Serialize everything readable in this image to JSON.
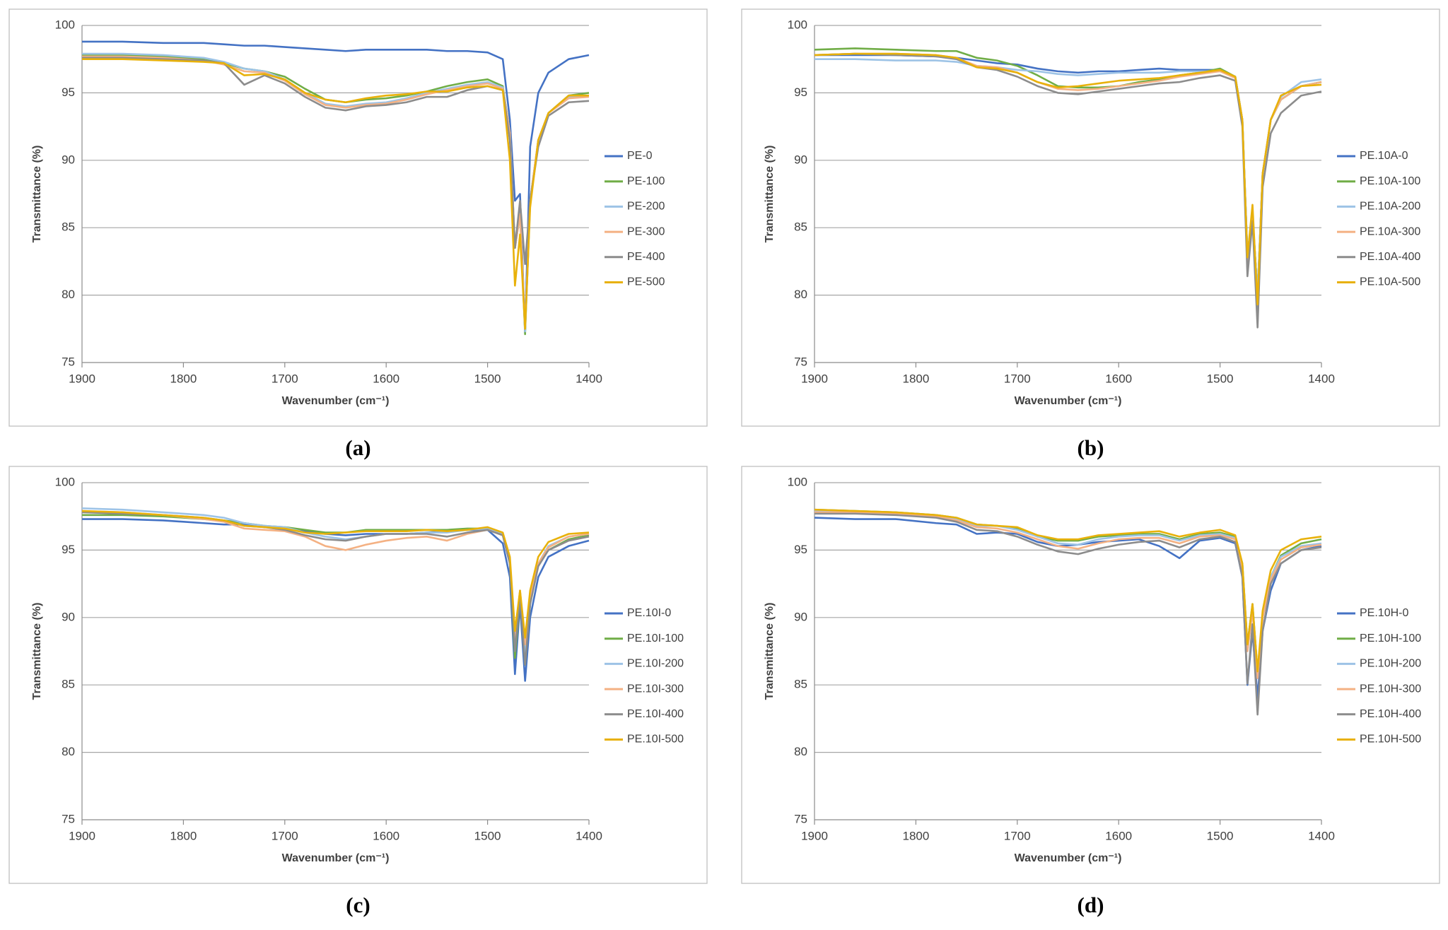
{
  "chart_data": [
    {
      "type": "line",
      "panel_label": "(a)",
      "x_label": "Wavenumber (cm⁻¹)",
      "y_label": "Transmittance (%)",
      "xlim": [
        1900,
        1400
      ],
      "ylim": [
        75,
        100
      ],
      "xticks": [
        1900,
        1800,
        1700,
        1600,
        1500,
        1400
      ],
      "yticks": [
        75,
        80,
        85,
        90,
        95,
        100
      ],
      "grid": true,
      "x": [
        1900,
        1860,
        1820,
        1780,
        1760,
        1740,
        1720,
        1700,
        1680,
        1660,
        1640,
        1620,
        1600,
        1580,
        1560,
        1540,
        1520,
        1500,
        1485,
        1478,
        1473,
        1468,
        1463,
        1458,
        1450,
        1440,
        1420,
        1400
      ],
      "series": [
        {
          "name": "PE-0",
          "color": "#4472c4",
          "values": [
            98.8,
            98.8,
            98.7,
            98.7,
            98.6,
            98.5,
            98.5,
            98.4,
            98.3,
            98.2,
            98.1,
            98.2,
            98.2,
            98.2,
            98.2,
            98.1,
            98.1,
            98.0,
            97.5,
            93,
            87,
            87.5,
            77.2,
            91,
            95,
            96.5,
            97.5,
            97.8
          ]
        },
        {
          "name": "PE-100",
          "color": "#70ad47",
          "values": [
            97.8,
            97.8,
            97.7,
            97.5,
            97.2,
            96.8,
            96.6,
            96.2,
            95.3,
            94.5,
            94.3,
            94.5,
            94.6,
            94.8,
            95.1,
            95.5,
            95.8,
            96.0,
            95.5,
            92,
            83.5,
            86,
            77.1,
            87,
            91.5,
            93.5,
            94.8,
            95.0
          ]
        },
        {
          "name": "PE-200",
          "color": "#9dc3e6",
          "values": [
            97.9,
            97.9,
            97.8,
            97.6,
            97.3,
            96.8,
            96.6,
            96.0,
            95.0,
            94.2,
            94.0,
            94.2,
            94.3,
            94.6,
            95.0,
            95.3,
            95.6,
            95.8,
            95.4,
            92,
            83.5,
            86,
            77.3,
            87,
            91.5,
            93.5,
            94.7,
            94.8
          ]
        },
        {
          "name": "PE-300",
          "color": "#f4b183",
          "values": [
            97.7,
            97.7,
            97.6,
            97.4,
            97.1,
            96.6,
            96.5,
            95.9,
            94.9,
            94.1,
            93.9,
            94.1,
            94.2,
            94.5,
            94.9,
            95.2,
            95.5,
            95.7,
            95.3,
            92,
            83.5,
            86,
            77.5,
            87,
            91.5,
            93.5,
            94.6,
            94.7
          ]
        },
        {
          "name": "PE-400",
          "color": "#8c8c8c",
          "values": [
            97.6,
            97.6,
            97.5,
            97.4,
            97.2,
            95.6,
            96.3,
            95.7,
            94.7,
            93.9,
            93.7,
            94.0,
            94.1,
            94.3,
            94.7,
            94.7,
            95.2,
            95.5,
            95.2,
            91.5,
            83.5,
            87,
            82.3,
            87,
            91,
            93.3,
            94.3,
            94.4
          ]
        },
        {
          "name": "PE-500",
          "color": "#e8b10a",
          "values": [
            97.5,
            97.5,
            97.4,
            97.3,
            97.2,
            96.3,
            96.4,
            96.0,
            95.0,
            94.5,
            94.3,
            94.6,
            94.8,
            94.9,
            95.1,
            95.1,
            95.4,
            95.5,
            95.2,
            90,
            80.7,
            84.5,
            77.5,
            86.5,
            91.5,
            93.5,
            94.8,
            94.8
          ]
        }
      ]
    },
    {
      "type": "line",
      "panel_label": "(b)",
      "x_label": "Wavenumber (cm⁻¹)",
      "y_label": "Transmittance (%)",
      "xlim": [
        1900,
        1400
      ],
      "ylim": [
        75,
        100
      ],
      "xticks": [
        1900,
        1800,
        1700,
        1600,
        1500,
        1400
      ],
      "yticks": [
        75,
        80,
        85,
        90,
        95,
        100
      ],
      "grid": true,
      "x": [
        1900,
        1860,
        1820,
        1780,
        1760,
        1740,
        1720,
        1700,
        1680,
        1660,
        1640,
        1620,
        1600,
        1580,
        1560,
        1540,
        1520,
        1500,
        1485,
        1478,
        1473,
        1468,
        1463,
        1458,
        1450,
        1440,
        1420,
        1400
      ],
      "series": [
        {
          "name": "PE.10A-0",
          "color": "#4472c4",
          "values": [
            97.8,
            97.8,
            97.8,
            97.7,
            97.6,
            97.4,
            97.2,
            97.1,
            96.8,
            96.6,
            96.5,
            96.6,
            96.6,
            96.7,
            96.8,
            96.7,
            96.7,
            96.7,
            96.2,
            93,
            83,
            86,
            80,
            89,
            93,
            94.5,
            95.5,
            95.8
          ]
        },
        {
          "name": "PE.10A-100",
          "color": "#70ad47",
          "values": [
            98.2,
            98.3,
            98.2,
            98.1,
            98.1,
            97.6,
            97.4,
            97.0,
            96.3,
            95.5,
            95.4,
            95.4,
            95.5,
            95.8,
            96.0,
            96.3,
            96.5,
            96.8,
            96.2,
            93,
            83,
            86,
            80,
            89,
            93,
            94.5,
            95.5,
            95.8
          ]
        },
        {
          "name": "PE.10A-200",
          "color": "#9dc3e6",
          "values": [
            97.5,
            97.5,
            97.4,
            97.4,
            97.3,
            97.0,
            96.9,
            96.7,
            96.6,
            96.4,
            96.3,
            96.4,
            96.5,
            96.5,
            96.5,
            96.6,
            96.6,
            96.6,
            96.2,
            93,
            83,
            86,
            80,
            89,
            93,
            94.7,
            95.8,
            96.0
          ]
        },
        {
          "name": "PE.10A-300",
          "color": "#f4b183",
          "values": [
            97.8,
            97.9,
            97.9,
            97.8,
            97.6,
            97.0,
            96.9,
            96.5,
            95.8,
            95.3,
            95.2,
            95.3,
            95.5,
            95.7,
            95.9,
            96.2,
            96.4,
            96.6,
            96.1,
            93,
            82.5,
            86,
            79,
            89,
            93,
            94.5,
            95.5,
            95.8
          ]
        },
        {
          "name": "PE.10A-400",
          "color": "#8c8c8c",
          "values": [
            97.8,
            97.9,
            97.8,
            97.7,
            97.5,
            96.9,
            96.7,
            96.2,
            95.5,
            95.0,
            94.9,
            95.1,
            95.3,
            95.5,
            95.7,
            95.8,
            96.1,
            96.3,
            95.9,
            92.5,
            81.4,
            85.5,
            77.6,
            88,
            92,
            93.5,
            94.8,
            95.1
          ]
        },
        {
          "name": "PE.10A-500",
          "color": "#e8b10a",
          "values": [
            97.8,
            97.9,
            97.9,
            97.8,
            97.6,
            96.9,
            96.8,
            96.5,
            95.8,
            95.4,
            95.5,
            95.7,
            95.9,
            96.0,
            96.1,
            96.3,
            96.5,
            96.7,
            96.2,
            93,
            82.8,
            86.7,
            79.3,
            89,
            93,
            94.8,
            95.5,
            95.6
          ]
        }
      ]
    },
    {
      "type": "line",
      "panel_label": "(c)",
      "x_label": "Wavenumber (cm⁻¹)",
      "y_label": "Transmittance (%)",
      "xlim": [
        1900,
        1400
      ],
      "ylim": [
        75,
        100
      ],
      "xticks": [
        1900,
        1800,
        1700,
        1600,
        1500,
        1400
      ],
      "yticks": [
        75,
        80,
        85,
        90,
        95,
        100
      ],
      "grid": true,
      "x": [
        1900,
        1860,
        1820,
        1780,
        1760,
        1740,
        1720,
        1700,
        1680,
        1660,
        1640,
        1620,
        1600,
        1580,
        1560,
        1540,
        1520,
        1500,
        1485,
        1478,
        1473,
        1468,
        1463,
        1458,
        1450,
        1440,
        1420,
        1400
      ],
      "series": [
        {
          "name": "PE.10I-0",
          "color": "#4472c4",
          "values": [
            97.3,
            97.3,
            97.2,
            97.0,
            96.9,
            96.9,
            96.7,
            96.6,
            96.4,
            96.2,
            96.1,
            96.2,
            96.2,
            96.2,
            96.3,
            96.4,
            96.5,
            96.5,
            95.5,
            93,
            85.8,
            91,
            85.3,
            90,
            93,
            94.5,
            95.3,
            95.7
          ]
        },
        {
          "name": "PE.10I-100",
          "color": "#70ad47",
          "values": [
            97.6,
            97.6,
            97.5,
            97.3,
            97.2,
            97.0,
            96.8,
            96.7,
            96.5,
            96.3,
            96.3,
            96.5,
            96.5,
            96.5,
            96.5,
            96.5,
            96.6,
            96.6,
            96.2,
            94,
            87,
            91.5,
            86.5,
            91,
            94,
            95,
            95.8,
            96.1
          ]
        },
        {
          "name": "PE.10I-200",
          "color": "#9dc3e6",
          "values": [
            98.1,
            98.0,
            97.8,
            97.6,
            97.4,
            97.0,
            96.8,
            96.7,
            96.3,
            96.0,
            95.8,
            96.0,
            96.2,
            96.2,
            96.3,
            96.3,
            96.5,
            96.6,
            96.2,
            94,
            88,
            92,
            87,
            91.5,
            94,
            95.3,
            96.0,
            96.2
          ]
        },
        {
          "name": "PE.10I-300",
          "color": "#f4b183",
          "values": [
            97.9,
            97.8,
            97.6,
            97.3,
            97.1,
            96.6,
            96.5,
            96.4,
            96.0,
            95.3,
            95.0,
            95.4,
            95.7,
            95.9,
            96.0,
            95.7,
            96.2,
            96.5,
            96.1,
            94,
            88.5,
            92,
            88,
            91.5,
            94,
            95.2,
            96.0,
            96.2
          ]
        },
        {
          "name": "PE.10I-400",
          "color": "#8c8c8c",
          "values": [
            97.8,
            97.7,
            97.6,
            97.4,
            97.2,
            96.8,
            96.7,
            96.5,
            96.1,
            95.8,
            95.7,
            96.0,
            96.2,
            96.2,
            96.2,
            96.0,
            96.3,
            96.5,
            96.1,
            94,
            87.5,
            91.5,
            86.5,
            91,
            93.8,
            95,
            95.7,
            96.0
          ]
        },
        {
          "name": "PE.10I-500",
          "color": "#e8b10a",
          "values": [
            97.9,
            97.8,
            97.6,
            97.4,
            97.2,
            96.8,
            96.7,
            96.6,
            96.3,
            96.2,
            96.3,
            96.4,
            96.4,
            96.4,
            96.5,
            96.4,
            96.5,
            96.7,
            96.3,
            94.5,
            89,
            92,
            88.5,
            92,
            94.5,
            95.6,
            96.2,
            96.3
          ]
        }
      ]
    },
    {
      "type": "line",
      "panel_label": "(d)",
      "x_label": "Wavenumber (cm⁻¹)",
      "y_label": "Transmittance (%)",
      "xlim": [
        1900,
        1400
      ],
      "ylim": [
        75,
        100
      ],
      "xticks": [
        1900,
        1800,
        1700,
        1600,
        1500,
        1400
      ],
      "yticks": [
        75,
        80,
        85,
        90,
        95,
        100
      ],
      "grid": true,
      "x": [
        1900,
        1860,
        1820,
        1780,
        1760,
        1740,
        1720,
        1700,
        1680,
        1660,
        1640,
        1620,
        1600,
        1580,
        1560,
        1540,
        1520,
        1500,
        1485,
        1478,
        1473,
        1468,
        1463,
        1458,
        1450,
        1440,
        1420,
        1400
      ],
      "series": [
        {
          "name": "PE.10H-0",
          "color": "#4472c4",
          "values": [
            97.4,
            97.3,
            97.3,
            97.0,
            96.9,
            96.2,
            96.3,
            96.2,
            95.6,
            95.3,
            95.4,
            95.6,
            95.7,
            95.8,
            95.3,
            94.4,
            95.7,
            95.9,
            95.5,
            93,
            85,
            89,
            84,
            89,
            92,
            94,
            95.0,
            95.3
          ]
        },
        {
          "name": "PE.10H-100",
          "color": "#70ad47",
          "values": [
            98.0,
            97.9,
            97.8,
            97.6,
            97.4,
            96.9,
            96.8,
            96.6,
            96.0,
            95.7,
            95.7,
            96.0,
            96.1,
            96.2,
            96.2,
            95.8,
            96.2,
            96.3,
            96.0,
            94,
            88,
            91,
            86,
            90,
            93,
            94.6,
            95.5,
            95.8
          ]
        },
        {
          "name": "PE.10H-200",
          "color": "#9dc3e6",
          "values": [
            97.9,
            97.8,
            97.7,
            97.5,
            97.3,
            96.8,
            96.8,
            96.5,
            96.0,
            95.5,
            95.4,
            95.8,
            96.0,
            96.1,
            96.1,
            95.7,
            96.1,
            96.2,
            95.9,
            93.5,
            87.5,
            90.5,
            85.5,
            90,
            93,
            94.5,
            95.3,
            95.5
          ]
        },
        {
          "name": "PE.10H-300",
          "color": "#f4b183",
          "values": [
            97.8,
            97.8,
            97.7,
            97.5,
            97.2,
            96.7,
            96.6,
            96.3,
            95.8,
            95.3,
            95.1,
            95.5,
            95.8,
            95.9,
            95.9,
            95.5,
            96.0,
            96.1,
            95.8,
            93.5,
            87.5,
            90.5,
            85.5,
            90,
            92.8,
            94.3,
            95.2,
            95.4
          ]
        },
        {
          "name": "PE.10H-400",
          "color": "#8c8c8c",
          "values": [
            97.7,
            97.7,
            97.6,
            97.4,
            97.1,
            96.5,
            96.4,
            96.0,
            95.4,
            94.9,
            94.7,
            95.1,
            95.4,
            95.6,
            95.7,
            95.2,
            95.8,
            96.0,
            95.6,
            93,
            85.1,
            89.5,
            82.8,
            89,
            92.5,
            94,
            95.0,
            95.2
          ]
        },
        {
          "name": "PE.10H-500",
          "color": "#e8b10a",
          "values": [
            98.0,
            97.9,
            97.8,
            97.6,
            97.4,
            96.9,
            96.8,
            96.7,
            96.1,
            95.8,
            95.8,
            96.1,
            96.2,
            96.3,
            96.4,
            96.0,
            96.3,
            96.5,
            96.1,
            94,
            88,
            91,
            86,
            90.5,
            93.5,
            95,
            95.8,
            96.0
          ]
        }
      ]
    }
  ]
}
